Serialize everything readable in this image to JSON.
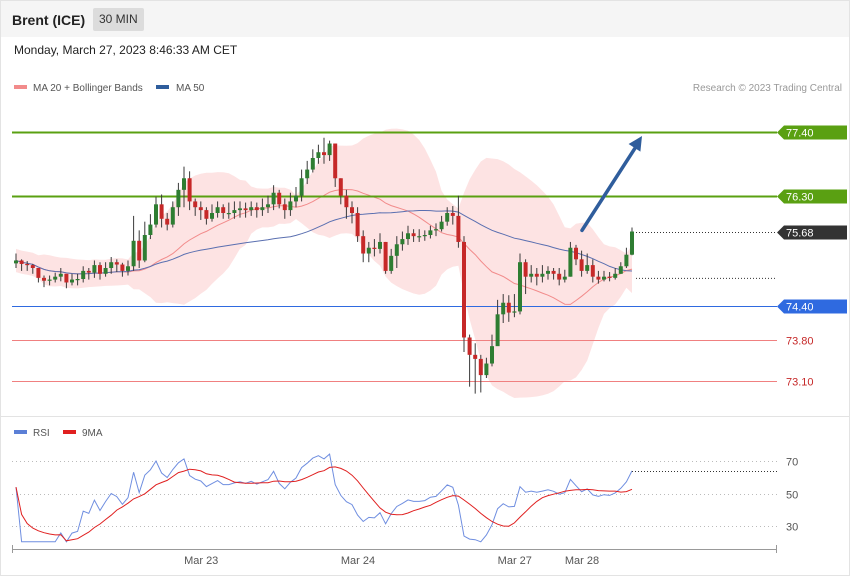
{
  "header": {
    "instrument": "Brent (ICE)",
    "timeframe": "30 MIN",
    "datetime": "Monday, March 27, 2023 8:46:33 AM CET"
  },
  "legend_main": [
    {
      "label": "MA 20 + Bollinger Bands",
      "color": "#f28b8b"
    },
    {
      "label": "MA 50",
      "color": "#2f5d9c"
    }
  ],
  "copyright": "Research © 2023 Trading Central",
  "legend_rsi": [
    {
      "label": "RSI",
      "color": "#5b7fd6"
    },
    {
      "label": "9MA",
      "color": "#e02020"
    }
  ],
  "colors": {
    "up": "#2e7d32",
    "down": "#c62828",
    "resistance": "#5aa012",
    "support": "#2f6ae0",
    "support_minor": "#f08080",
    "band": "#fde3e3",
    "arrow": "#2f5d9c",
    "last": "#333333"
  },
  "chart_data": {
    "type": "candlestick",
    "y_range": [
      72.58,
      77.9
    ],
    "x_range": [
      0,
      110
    ],
    "x_ticks": [
      {
        "label": "Mar 23",
        "x": 32
      },
      {
        "label": "Mar 24",
        "x": 60
      },
      {
        "label": "Mar 27",
        "x": 88
      },
      {
        "label": "Mar 28",
        "x": 100
      }
    ],
    "levels": [
      {
        "label": "77.40",
        "value": 77.4,
        "kind": "resistance"
      },
      {
        "label": "76.30",
        "value": 76.3,
        "kind": "resistance"
      },
      {
        "label": "75.68",
        "value": 75.68,
        "kind": "last"
      },
      {
        "label": "74.40",
        "value": 74.4,
        "kind": "support"
      },
      {
        "label": "73.80",
        "value": 73.8,
        "kind": "support_minor"
      },
      {
        "label": "73.10",
        "value": 73.1,
        "kind": "support_minor"
      }
    ],
    "projection": {
      "from": [
        100,
        75.7
      ],
      "to": [
        110,
        77.33
      ]
    },
    "current_price_x_end": 110,
    "close": [
      75.18,
      75.12,
      75.1,
      75.05,
      74.88,
      74.83,
      74.85,
      74.9,
      74.95,
      74.8,
      74.85,
      74.86,
      75.0,
      74.97,
      75.1,
      74.95,
      75.05,
      75.15,
      75.11,
      75.0,
      75.08,
      75.52,
      75.18,
      75.62,
      75.8,
      76.15,
      75.9,
      75.8,
      76.1,
      76.4,
      76.6,
      76.2,
      76.1,
      76.05,
      75.9,
      76.0,
      76.1,
      76.0,
      76.0,
      76.05,
      76.08,
      76.05,
      76.1,
      76.05,
      76.1,
      76.15,
      76.35,
      76.15,
      76.05,
      76.2,
      76.3,
      76.6,
      76.75,
      76.95,
      77.05,
      77.0,
      77.2,
      76.6,
      76.3,
      76.1,
      76.0,
      75.6,
      75.3,
      75.4,
      75.38,
      75.5,
      75.0,
      75.26,
      75.46,
      75.55,
      75.65,
      75.6,
      75.6,
      75.62,
      75.7,
      75.72,
      75.85,
      76.0,
      75.95,
      75.5,
      73.85,
      73.55,
      73.48,
      73.2,
      73.4,
      73.7,
      74.25,
      74.45,
      74.28,
      74.3,
      75.15,
      74.9,
      74.95,
      74.9,
      74.95,
      75.0,
      74.95,
      74.85,
      74.9,
      75.4,
      75.2,
      75.0,
      75.1,
      74.9,
      74.85,
      74.9,
      74.88,
      74.95,
      75.08,
      75.28,
      75.68
    ],
    "high": [
      75.3,
      75.2,
      75.17,
      75.12,
      75.0,
      74.92,
      74.92,
      74.97,
      75.05,
      74.93,
      74.95,
      74.95,
      75.08,
      75.05,
      75.18,
      75.15,
      75.15,
      75.24,
      75.2,
      75.14,
      75.18,
      75.95,
      75.7,
      75.85,
      75.98,
      76.28,
      76.32,
      76.0,
      76.2,
      76.52,
      76.8,
      76.72,
      76.25,
      76.2,
      76.1,
      76.15,
      76.2,
      76.15,
      76.18,
      76.2,
      76.2,
      76.18,
      76.2,
      76.18,
      76.25,
      76.3,
      76.48,
      76.4,
      76.25,
      76.35,
      76.45,
      76.75,
      76.9,
      77.1,
      77.18,
      77.3,
      77.25,
      77.2,
      76.6,
      76.4,
      76.2,
      76.1,
      75.7,
      75.5,
      75.55,
      75.65,
      75.5,
      75.38,
      75.6,
      75.68,
      75.78,
      75.72,
      75.72,
      75.7,
      75.78,
      75.82,
      75.95,
      76.1,
      76.12,
      76.3,
      75.6,
      73.9,
      73.75,
      73.55,
      73.5,
      73.9,
      74.5,
      74.6,
      74.58,
      74.6,
      75.3,
      75.2,
      75.1,
      75.05,
      75.1,
      75.08,
      75.05,
      75.05,
      75.02,
      75.5,
      75.45,
      75.35,
      75.3,
      75.2,
      75.0,
      75.0,
      74.98,
      75.05,
      75.15,
      75.4,
      75.75
    ],
    "low": [
      75.05,
      75.0,
      75.0,
      74.95,
      74.8,
      74.72,
      74.75,
      74.8,
      74.82,
      74.7,
      74.75,
      74.75,
      74.8,
      74.85,
      74.88,
      74.85,
      74.9,
      74.95,
      74.98,
      74.9,
      74.92,
      75.0,
      75.05,
      75.15,
      75.55,
      75.75,
      75.75,
      75.7,
      75.75,
      75.95,
      76.1,
      76.05,
      75.95,
      75.88,
      75.8,
      75.85,
      75.92,
      75.9,
      75.9,
      75.9,
      75.92,
      75.92,
      75.95,
      75.92,
      75.95,
      76.0,
      76.05,
      76.08,
      75.9,
      75.95,
      76.1,
      76.2,
      76.5,
      76.7,
      76.85,
      76.85,
      76.9,
      76.45,
      76.15,
      75.9,
      75.82,
      75.5,
      75.15,
      75.15,
      75.25,
      75.3,
      74.95,
      74.95,
      75.05,
      75.35,
      75.45,
      75.5,
      75.5,
      75.52,
      75.56,
      75.6,
      75.68,
      75.78,
      75.8,
      75.4,
      73.6,
      73.0,
      72.88,
      72.9,
      73.15,
      73.35,
      73.72,
      74.1,
      74.12,
      74.2,
      74.25,
      74.6,
      74.8,
      74.75,
      74.8,
      74.85,
      74.85,
      74.75,
      74.8,
      74.9,
      75.1,
      74.9,
      74.95,
      74.8,
      74.78,
      74.82,
      74.82,
      74.85,
      74.95,
      75.05,
      75.27
    ]
  },
  "rsi_chart": {
    "y_range": [
      18,
      82
    ],
    "levels": [
      {
        "label": "70",
        "value": 70
      },
      {
        "label": "50",
        "value": 50
      },
      {
        "label": "30",
        "value": 30
      }
    ]
  }
}
